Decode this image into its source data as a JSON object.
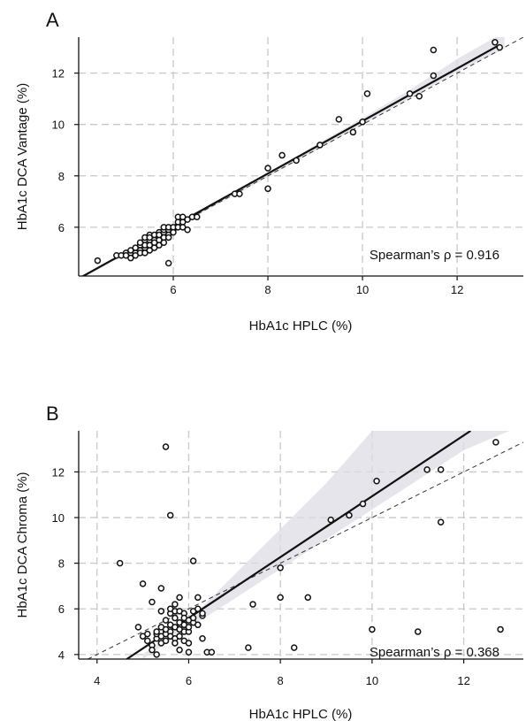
{
  "chart_data": [
    {
      "type": "scatter",
      "panel_label": "A",
      "xlabel": "HbA1c HPLC (%)",
      "ylabel": "HbA1c DCA Vantage (%)",
      "annotation": "Spearman’s ρ = 0.916",
      "xlim": [
        4.0,
        13.4
      ],
      "ylim": [
        4.1,
        13.4
      ],
      "xticks": [
        6,
        8,
        10,
        12
      ],
      "yticks": [
        6,
        8,
        10,
        12
      ],
      "grid": true,
      "fit_line": [
        [
          4.0,
          4.0
        ],
        [
          12.9,
          13.1
        ]
      ],
      "ci_band": {
        "x": [
          4.0,
          6.0,
          8.0,
          10.0,
          11.0,
          12.0,
          13.0
        ],
        "upper": [
          4.06,
          6.05,
          8.12,
          10.25,
          11.35,
          12.55,
          13.6
        ],
        "lower": [
          3.94,
          5.95,
          7.95,
          10.0,
          11.0,
          12.05,
          12.95
        ]
      },
      "identity_line": [
        [
          4.0,
          4.0
        ],
        [
          13.4,
          13.4
        ]
      ],
      "points": [
        [
          4.4,
          4.7
        ],
        [
          4.8,
          4.9
        ],
        [
          4.9,
          4.9
        ],
        [
          5.0,
          5.0
        ],
        [
          5.0,
          4.9
        ],
        [
          5.1,
          5.0
        ],
        [
          5.1,
          4.8
        ],
        [
          5.1,
          5.1
        ],
        [
          5.2,
          5.0
        ],
        [
          5.2,
          5.2
        ],
        [
          5.2,
          4.9
        ],
        [
          5.3,
          5.3
        ],
        [
          5.3,
          5.1
        ],
        [
          5.3,
          5.4
        ],
        [
          5.3,
          5.0
        ],
        [
          5.4,
          5.5
        ],
        [
          5.4,
          5.2
        ],
        [
          5.4,
          5.6
        ],
        [
          5.4,
          5.3
        ],
        [
          5.4,
          5.0
        ],
        [
          5.5,
          5.5
        ],
        [
          5.5,
          5.7
        ],
        [
          5.5,
          5.3
        ],
        [
          5.5,
          5.1
        ],
        [
          5.5,
          5.6
        ],
        [
          5.6,
          5.5
        ],
        [
          5.6,
          5.7
        ],
        [
          5.6,
          5.4
        ],
        [
          5.6,
          5.2
        ],
        [
          5.7,
          5.6
        ],
        [
          5.7,
          5.8
        ],
        [
          5.7,
          5.5
        ],
        [
          5.7,
          5.3
        ],
        [
          5.7,
          5.7
        ],
        [
          5.8,
          5.8
        ],
        [
          5.8,
          5.6
        ],
        [
          5.8,
          5.9
        ],
        [
          5.8,
          5.4
        ],
        [
          5.8,
          6.0
        ],
        [
          5.9,
          5.9
        ],
        [
          5.9,
          5.7
        ],
        [
          5.9,
          5.6
        ],
        [
          5.9,
          6.0
        ],
        [
          5.9,
          4.6
        ],
        [
          6.0,
          5.9
        ],
        [
          6.0,
          6.0
        ],
        [
          6.0,
          5.8
        ],
        [
          6.1,
          6.2
        ],
        [
          6.1,
          6.0
        ],
        [
          6.1,
          6.4
        ],
        [
          6.2,
          6.2
        ],
        [
          6.2,
          6.4
        ],
        [
          6.2,
          6.0
        ],
        [
          6.3,
          6.3
        ],
        [
          6.3,
          5.9
        ],
        [
          6.4,
          6.4
        ],
        [
          6.5,
          6.4
        ],
        [
          7.3,
          7.3
        ],
        [
          7.4,
          7.3
        ],
        [
          8.0,
          8.3
        ],
        [
          8.0,
          7.5
        ],
        [
          8.3,
          8.8
        ],
        [
          8.6,
          8.6
        ],
        [
          9.1,
          9.2
        ],
        [
          9.5,
          10.2
        ],
        [
          9.8,
          9.7
        ],
        [
          10.0,
          10.1
        ],
        [
          10.1,
          11.2
        ],
        [
          11.0,
          11.2
        ],
        [
          11.2,
          11.1
        ],
        [
          11.5,
          11.9
        ],
        [
          11.5,
          12.9
        ],
        [
          12.8,
          13.2
        ],
        [
          12.9,
          13.0
        ]
      ]
    },
    {
      "type": "scatter",
      "panel_label": "B",
      "xlabel": "HbA1c HPLC (%)",
      "ylabel": "HbA1c DCA Chroma (%)",
      "annotation": "Spearman’s ρ = 0.368",
      "xlim": [
        3.6,
        13.3
      ],
      "ylim": [
        3.8,
        13.8
      ],
      "xticks": [
        4,
        6,
        8,
        10,
        12
      ],
      "yticks": [
        4,
        6,
        8,
        10,
        12
      ],
      "grid": true,
      "fit_line": [
        [
          4.65,
          3.8
        ],
        [
          12.15,
          13.8
        ]
      ],
      "ci_band": {
        "x": [
          5.0,
          6.0,
          7.0,
          8.0,
          9.0,
          10.0,
          11.0,
          12.0,
          13.0
        ],
        "upper": [
          4.0,
          5.5,
          7.5,
          9.5,
          11.5,
          13.8,
          13.8,
          13.8,
          13.8
        ],
        "lower": [
          3.8,
          5.15,
          6.45,
          7.75,
          9.05,
          10.35,
          11.65,
          12.95,
          13.8
        ]
      },
      "identity_line": [
        [
          3.8,
          3.8
        ],
        [
          13.3,
          13.3
        ]
      ],
      "points": [
        [
          4.5,
          8.0
        ],
        [
          4.9,
          5.2
        ],
        [
          5.0,
          4.8
        ],
        [
          5.0,
          7.1
        ],
        [
          5.1,
          4.9
        ],
        [
          5.1,
          4.6
        ],
        [
          5.2,
          6.3
        ],
        [
          5.2,
          4.4
        ],
        [
          5.2,
          4.2
        ],
        [
          5.3,
          4.7
        ],
        [
          5.3,
          4.9
        ],
        [
          5.3,
          4.0
        ],
        [
          5.3,
          5.0
        ],
        [
          5.4,
          4.8
        ],
        [
          5.4,
          6.9
        ],
        [
          5.4,
          4.5
        ],
        [
          5.4,
          5.9
        ],
        [
          5.4,
          5.2
        ],
        [
          5.5,
          13.1
        ],
        [
          5.5,
          5.0
        ],
        [
          5.5,
          4.6
        ],
        [
          5.5,
          5.5
        ],
        [
          5.5,
          4.9
        ],
        [
          5.5,
          5.1
        ],
        [
          5.6,
          10.1
        ],
        [
          5.6,
          5.0
        ],
        [
          5.6,
          4.8
        ],
        [
          5.6,
          5.8
        ],
        [
          5.6,
          6.0
        ],
        [
          5.6,
          5.3
        ],
        [
          5.7,
          4.7
        ],
        [
          5.7,
          5.9
        ],
        [
          5.7,
          5.2
        ],
        [
          5.7,
          6.2
        ],
        [
          5.7,
          4.5
        ],
        [
          5.7,
          5.6
        ],
        [
          5.8,
          6.5
        ],
        [
          5.8,
          5.1
        ],
        [
          5.8,
          4.2
        ],
        [
          5.8,
          5.9
        ],
        [
          5.8,
          4.8
        ],
        [
          5.8,
          5.4
        ],
        [
          5.9,
          5.3
        ],
        [
          5.9,
          5.0
        ],
        [
          5.9,
          5.8
        ],
        [
          5.9,
          4.6
        ],
        [
          5.9,
          5.6
        ],
        [
          6.0,
          4.1
        ],
        [
          6.0,
          5.5
        ],
        [
          6.0,
          5.0
        ],
        [
          6.0,
          5.2
        ],
        [
          6.0,
          4.5
        ],
        [
          6.1,
          8.1
        ],
        [
          6.1,
          5.9
        ],
        [
          6.1,
          5.4
        ],
        [
          6.1,
          5.6
        ],
        [
          6.2,
          6.0
        ],
        [
          6.2,
          5.3
        ],
        [
          6.2,
          6.5
        ],
        [
          6.3,
          5.7
        ],
        [
          6.3,
          4.7
        ],
        [
          6.3,
          5.8
        ],
        [
          6.4,
          4.1
        ],
        [
          6.5,
          4.1
        ],
        [
          7.3,
          4.3
        ],
        [
          7.4,
          6.2
        ],
        [
          8.0,
          7.8
        ],
        [
          8.0,
          6.5
        ],
        [
          8.3,
          4.3
        ],
        [
          8.6,
          6.5
        ],
        [
          9.1,
          9.9
        ],
        [
          9.5,
          10.1
        ],
        [
          9.8,
          10.6
        ],
        [
          10.0,
          5.1
        ],
        [
          10.1,
          11.6
        ],
        [
          11.0,
          5.0
        ],
        [
          11.2,
          12.1
        ],
        [
          11.5,
          12.1
        ],
        [
          11.5,
          9.8
        ],
        [
          12.7,
          13.3
        ],
        [
          12.8,
          5.1
        ]
      ]
    }
  ]
}
